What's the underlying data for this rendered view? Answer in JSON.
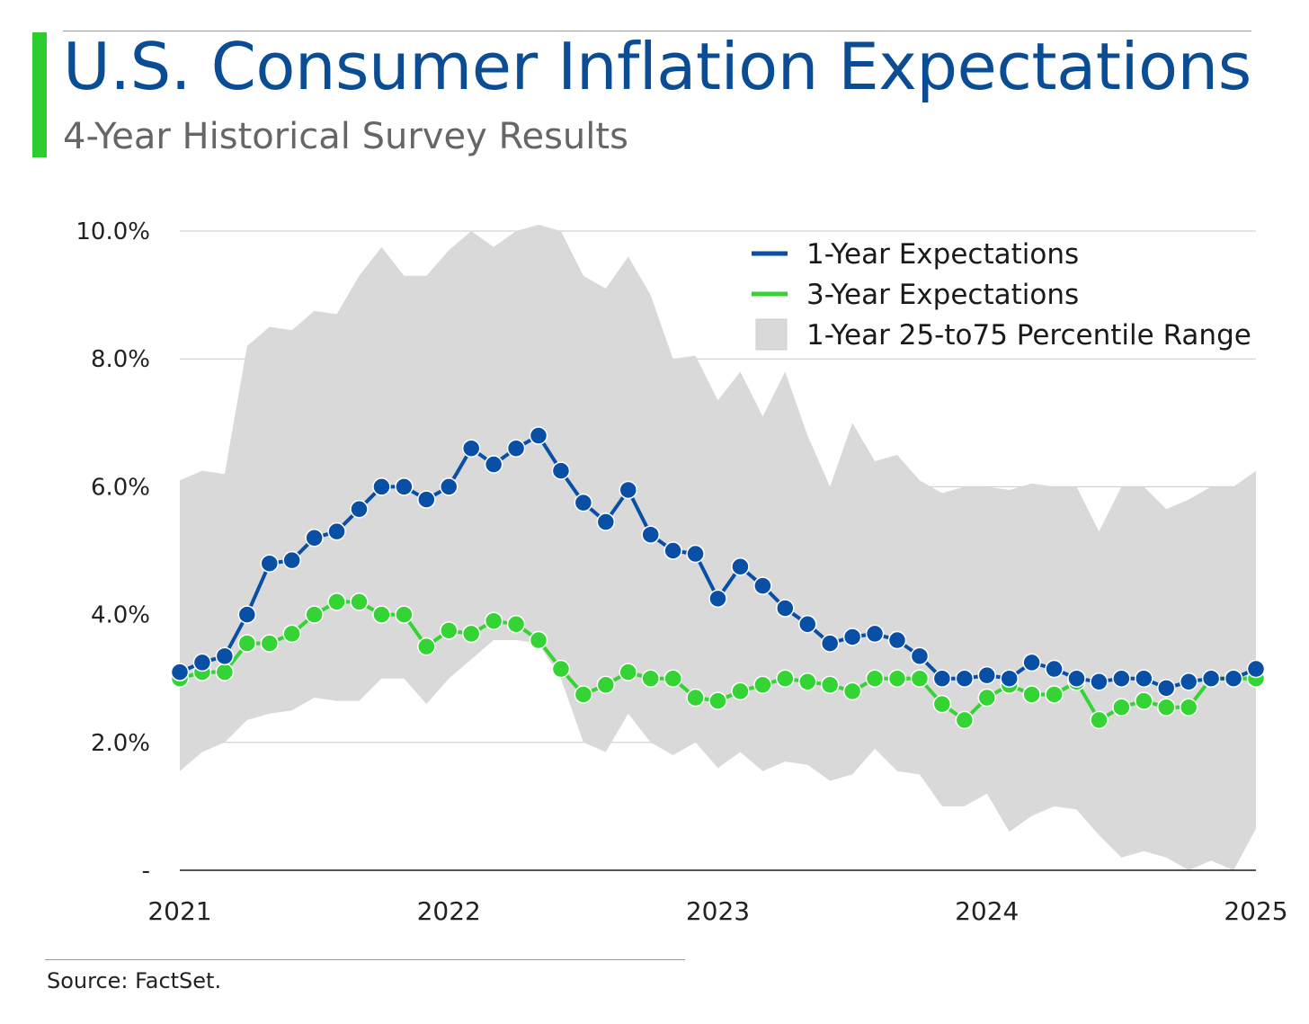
{
  "title": "U.S. Consumer Inflation Expectations",
  "subtitle": "4-Year Historical Survey Results",
  "source": "Source: FactSet.",
  "colors": {
    "accent": "#2ecc2e",
    "title": "#0a4d94",
    "one_year": "#0a4fa6",
    "three_year": "#33d433",
    "range": "#d9d9d9"
  },
  "chart_data": {
    "type": "line",
    "x_ticks": [
      "2021",
      "2022",
      "2023",
      "2024",
      "2025"
    ],
    "y_ticks": [
      "-",
      "2.0%",
      "4.0%",
      "6.0%",
      "8.0%",
      "10.0%"
    ],
    "ylim": [
      0,
      10
    ],
    "grid": true,
    "legend_position": "top-right",
    "legend": [
      "1-Year Expectations",
      "3-Year Expectations",
      "1-Year 25-to75 Percentile Range"
    ],
    "start": "2021-01",
    "series": [
      {
        "name": "1-Year Expectations",
        "values": [
          3.1,
          3.25,
          3.35,
          4.0,
          4.8,
          4.85,
          5.2,
          5.3,
          5.65,
          6.0,
          6.0,
          5.8,
          6.0,
          6.6,
          6.35,
          6.6,
          6.8,
          6.25,
          5.75,
          5.45,
          5.95,
          5.25,
          5.0,
          4.95,
          4.25,
          4.75,
          4.45,
          4.1,
          3.85,
          3.55,
          3.65,
          3.7,
          3.6,
          3.35,
          3.0,
          3.0,
          3.05,
          3.0,
          3.25,
          3.15,
          3.0,
          2.95,
          3.0,
          3.0,
          2.85,
          2.95,
          3.0,
          3.0,
          3.15
        ]
      },
      {
        "name": "3-Year Expectations",
        "values": [
          3.0,
          3.1,
          3.1,
          3.55,
          3.55,
          3.7,
          4.0,
          4.2,
          4.2,
          4.0,
          4.0,
          3.5,
          3.75,
          3.7,
          3.9,
          3.85,
          3.6,
          3.15,
          2.75,
          2.9,
          3.1,
          3.0,
          3.0,
          2.7,
          2.65,
          2.8,
          2.9,
          3.0,
          2.95,
          2.9,
          2.8,
          3.0,
          3.0,
          3.0,
          2.6,
          2.35,
          2.7,
          2.9,
          2.75,
          2.75,
          2.95,
          2.35,
          2.55,
          2.65,
          2.55,
          2.55,
          3.0,
          3.0,
          3.0
        ]
      },
      {
        "name": "1-Year 25-to75 Percentile Range",
        "upper": [
          6.1,
          6.25,
          6.2,
          8.2,
          8.5,
          8.45,
          8.75,
          8.7,
          9.3,
          9.75,
          9.3,
          9.3,
          9.7,
          10.0,
          9.75,
          10.0,
          10.1,
          10.0,
          9.3,
          9.1,
          9.6,
          9.0,
          8.0,
          8.05,
          7.35,
          7.8,
          7.1,
          7.8,
          6.8,
          6.0,
          7.0,
          6.4,
          6.5,
          6.1,
          5.9,
          6.0,
          6.0,
          5.95,
          6.05,
          6.0,
          6.0,
          5.3,
          6.0,
          6.0,
          5.65,
          5.8,
          6.0,
          6.0,
          6.25
        ],
        "lower": [
          1.55,
          1.85,
          2.0,
          2.35,
          2.45,
          2.5,
          2.7,
          2.65,
          2.65,
          3.0,
          3.0,
          2.6,
          3.0,
          3.3,
          3.6,
          3.6,
          3.55,
          3.0,
          2.0,
          1.85,
          2.45,
          2.0,
          1.8,
          2.0,
          1.6,
          1.85,
          1.55,
          1.7,
          1.65,
          1.4,
          1.5,
          1.9,
          1.55,
          1.5,
          1.0,
          1.0,
          1.2,
          0.6,
          0.85,
          1.0,
          0.95,
          0.55,
          0.2,
          0.3,
          0.2,
          0.0,
          0.15,
          0.0,
          0.65
        ]
      }
    ]
  }
}
